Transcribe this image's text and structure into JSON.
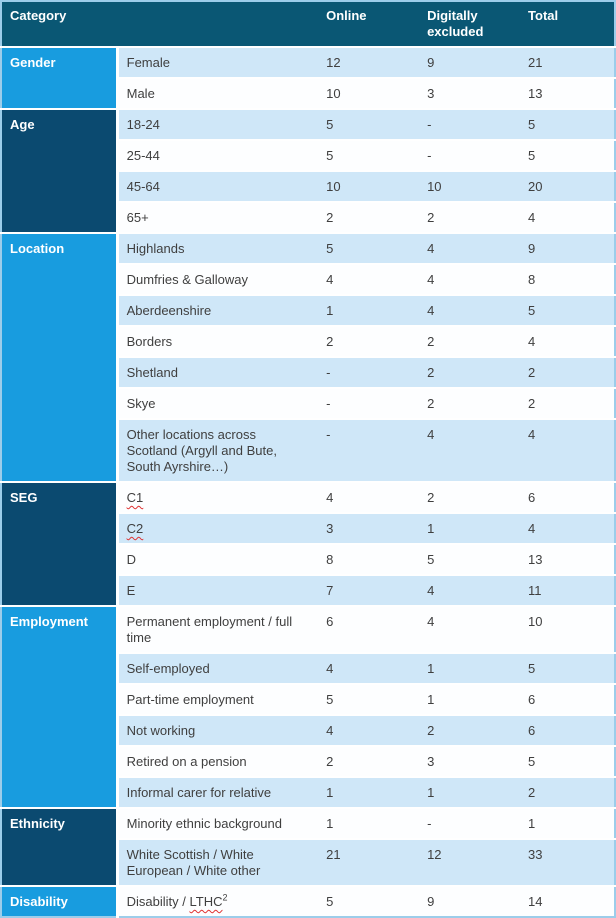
{
  "colors": {
    "header_bg": "#0a5774",
    "category_bright": "#189cdf",
    "category_dark": "#0b4a70",
    "row_light": "#cfe7f8",
    "row_white": "#fdfeff",
    "border_outer": "#9ccdea",
    "row_divider": "#ffffff",
    "text_header": "#ffffff",
    "text_body": "#3f3f3f",
    "squiggle_red": "#e03131"
  },
  "table": {
    "header": {
      "category": "Category",
      "online": "Online",
      "excluded": "Digitally excluded",
      "total": "Total"
    },
    "sections": [
      {
        "category": "Gender",
        "tone": "bright",
        "rows": [
          {
            "label": "Female",
            "online": "12",
            "excluded": "9",
            "total": "21",
            "shade": "light"
          },
          {
            "label": "Male",
            "online": "10",
            "excluded": "3",
            "total": "13",
            "shade": "white"
          }
        ]
      },
      {
        "category": "Age",
        "tone": "dark",
        "rows": [
          {
            "label": "18-24",
            "online": "5",
            "excluded": "-",
            "total": "5",
            "shade": "light"
          },
          {
            "label": "25-44",
            "online": "5",
            "excluded": "-",
            "total": "5",
            "shade": "white"
          },
          {
            "label": "45-64",
            "online": "10",
            "excluded": "10",
            "total": "20",
            "shade": "light"
          },
          {
            "label": "65+",
            "online": "2",
            "excluded": "2",
            "total": "4",
            "shade": "white"
          }
        ]
      },
      {
        "category": "Location",
        "tone": "bright",
        "rows": [
          {
            "label": "Highlands",
            "online": "5",
            "excluded": "4",
            "total": "9",
            "shade": "light"
          },
          {
            "label": "Dumfries & Galloway",
            "online": "4",
            "excluded": "4",
            "total": "8",
            "shade": "white"
          },
          {
            "label": "Aberdeenshire",
            "online": "1",
            "excluded": "4",
            "total": "5",
            "shade": "light"
          },
          {
            "label": "Borders",
            "online": "2",
            "excluded": "2",
            "total": "4",
            "shade": "white"
          },
          {
            "label": "Shetland",
            "online": "-",
            "excluded": "2",
            "total": "2",
            "shade": "light"
          },
          {
            "label": "Skye",
            "online": "-",
            "excluded": "2",
            "total": "2",
            "shade": "white"
          },
          {
            "label": "Other locations across Scotland (Argyll and Bute, South Ayrshire…)",
            "online": "-",
            "excluded": "4",
            "total": "4",
            "shade": "light"
          }
        ]
      },
      {
        "category": "SEG",
        "tone": "dark",
        "rows": [
          {
            "label": "C1",
            "prefix": "",
            "squiggle": "C1",
            "online": "4",
            "excluded": "2",
            "total": "6",
            "shade": "white"
          },
          {
            "label": "C2",
            "prefix": "",
            "squiggle": "C2",
            "online": "3",
            "excluded": "1",
            "total": "4",
            "shade": "light"
          },
          {
            "label": "D",
            "online": "8",
            "excluded": "5",
            "total": "13",
            "shade": "white"
          },
          {
            "label": "E",
            "online": "7",
            "excluded": "4",
            "total": "11",
            "shade": "light"
          }
        ]
      },
      {
        "category": "Employment",
        "tone": "bright",
        "rows": [
          {
            "label": "Permanent employment / full time",
            "online": "6",
            "excluded": "4",
            "total": "10",
            "shade": "white"
          },
          {
            "label": "Self-employed",
            "online": "4",
            "excluded": "1",
            "total": "5",
            "shade": "light"
          },
          {
            "label": "Part-time employment",
            "online": "5",
            "excluded": "1",
            "total": "6",
            "shade": "white"
          },
          {
            "label": "Not working",
            "online": "4",
            "excluded": "2",
            "total": "6",
            "shade": "light"
          },
          {
            "label": "Retired on a pension",
            "online": "2",
            "excluded": "3",
            "total": "5",
            "shade": "white"
          },
          {
            "label": "Informal carer for relative",
            "online": "1",
            "excluded": "1",
            "total": "2",
            "shade": "light"
          }
        ]
      },
      {
        "category": "Ethnicity",
        "tone": "dark",
        "rows": [
          {
            "label": "Minority ethnic background",
            "online": "1",
            "excluded": "-",
            "total": "1",
            "shade": "white"
          },
          {
            "label": "White Scottish / White European / White other",
            "online": "21",
            "excluded": "12",
            "total": "33",
            "shade": "light"
          }
        ]
      },
      {
        "category": "Disability",
        "tone": "bright",
        "rows": [
          {
            "label": "Disability / LTHC2",
            "prefix": "Disability / ",
            "squiggle": "LTHC",
            "sup": "2",
            "online": "5",
            "excluded": "9",
            "total": "14",
            "shade": "white"
          }
        ]
      }
    ]
  }
}
